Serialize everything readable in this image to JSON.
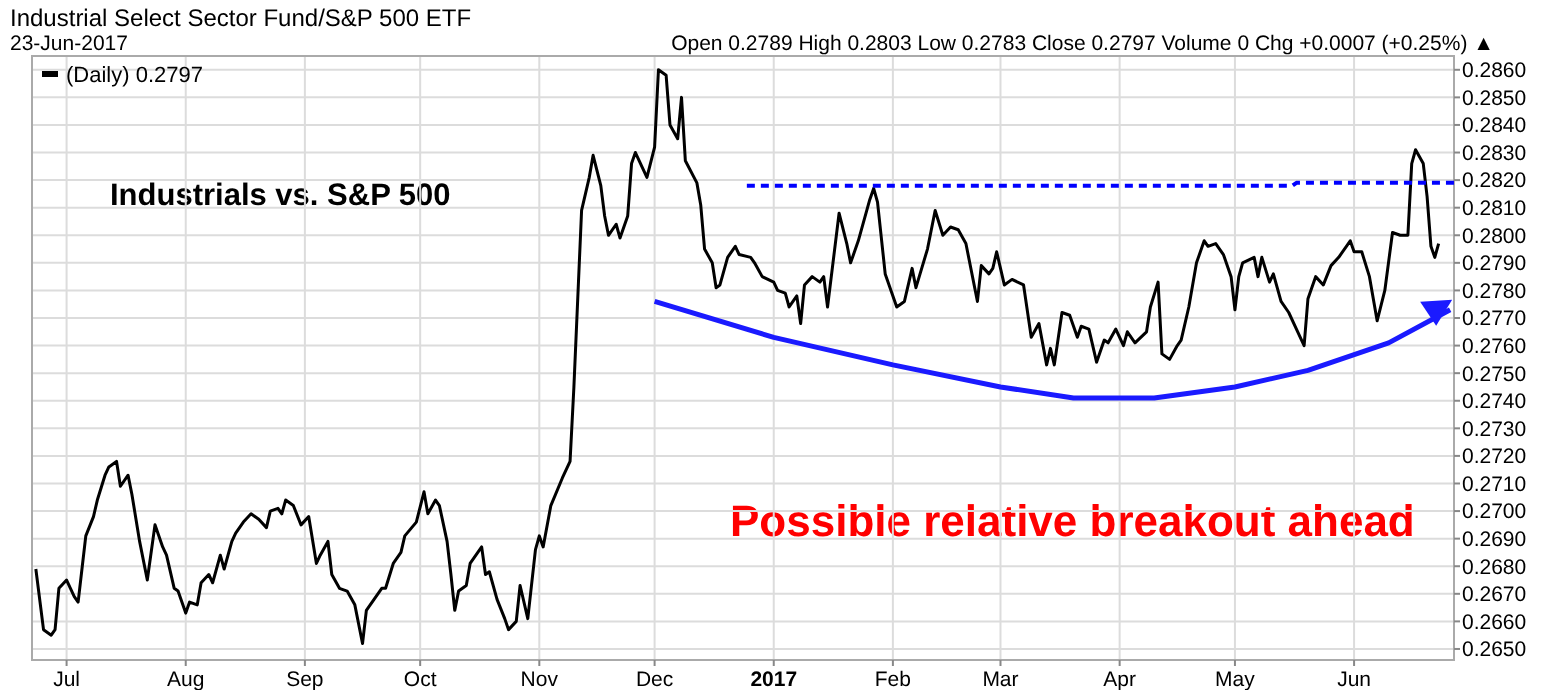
{
  "chart_data": {
    "type": "line",
    "title": "Industrial Select Sector Fund/S&P 500 ETF",
    "subtitle": "Open 0.2789  High 0.2803  Low 0.2783  Close 0.2797  Volume 0  Chg +0.0007 (+0.25%) ▲",
    "annotations": [
      "23-Jun-2017",
      "Industrials vs. S&P 500",
      "Possible relative breakout ahead"
    ],
    "legend": "top left",
    "grid": true,
    "xlim": [
      "2016-06-22",
      "2017-06-27"
    ],
    "xticks": [
      {
        "value": "2016-07-01",
        "label": "Jul"
      },
      {
        "value": "2016-08-01",
        "label": "Aug"
      },
      {
        "value": "2016-09-01",
        "label": "Sep"
      },
      {
        "value": "2016-10-01",
        "label": "Oct"
      },
      {
        "value": "2016-11-01",
        "label": "Nov"
      },
      {
        "value": "2016-12-01",
        "label": "Dec"
      },
      {
        "value": "2017-01-01",
        "label": "2017"
      },
      {
        "value": "2017-02-01",
        "label": "Feb"
      },
      {
        "value": "2017-03-01",
        "label": "Mar"
      },
      {
        "value": "2017-04-01",
        "label": "Apr"
      },
      {
        "value": "2017-05-01",
        "label": "May"
      },
      {
        "value": "2017-06-01",
        "label": "Jun"
      }
    ],
    "ylim": [
      0.2646,
      0.2865
    ],
    "yticks": [
      {
        "value": 0.265,
        "label": "0.2650"
      },
      {
        "value": 0.266,
        "label": "0.2660"
      },
      {
        "value": 0.267,
        "label": "0.2670"
      },
      {
        "value": 0.268,
        "label": "0.2680"
      },
      {
        "value": 0.269,
        "label": "0.2690"
      },
      {
        "value": 0.27,
        "label": "0.2700"
      },
      {
        "value": 0.271,
        "label": "0.2710"
      },
      {
        "value": 0.272,
        "label": "0.2720"
      },
      {
        "value": 0.273,
        "label": "0.2730"
      },
      {
        "value": 0.274,
        "label": "0.2740"
      },
      {
        "value": 0.275,
        "label": "0.2750"
      },
      {
        "value": 0.276,
        "label": "0.2760"
      },
      {
        "value": 0.277,
        "label": "0.2770"
      },
      {
        "value": 0.278,
        "label": "0.2780"
      },
      {
        "value": 0.279,
        "label": "0.2790"
      },
      {
        "value": 0.28,
        "label": "0.2800"
      },
      {
        "value": 0.281,
        "label": "0.2810"
      },
      {
        "value": 0.282,
        "label": "0.2820"
      },
      {
        "value": 0.283,
        "label": "0.2830"
      },
      {
        "value": 0.284,
        "label": "0.2840"
      },
      {
        "value": 0.285,
        "label": "0.2850"
      },
      {
        "value": 0.286,
        "label": "0.2860"
      }
    ],
    "series": [
      {
        "name": "(Daily) 0.2797",
        "color": "#000000",
        "line_style": "solid",
        "x": [
          "2016-06-23",
          "2016-06-25",
          "2016-06-27",
          "2016-06-28",
          "2016-06-29",
          "2016-07-01",
          "2016-07-03",
          "2016-07-04",
          "2016-07-05",
          "2016-07-06",
          "2016-07-08",
          "2016-07-09",
          "2016-07-11",
          "2016-07-12",
          "2016-07-14",
          "2016-07-15",
          "2016-07-17",
          "2016-07-18",
          "2016-07-20",
          "2016-07-22",
          "2016-07-24",
          "2016-07-26",
          "2016-07-27",
          "2016-07-29",
          "2016-07-30",
          "2016-08-01",
          "2016-08-02",
          "2016-08-04",
          "2016-08-05",
          "2016-08-07",
          "2016-08-08",
          "2016-08-10",
          "2016-08-11",
          "2016-08-13",
          "2016-08-14",
          "2016-08-16",
          "2016-08-18",
          "2016-08-20",
          "2016-08-22",
          "2016-08-23",
          "2016-08-25",
          "2016-08-26",
          "2016-08-27",
          "2016-08-29",
          "2016-08-31",
          "2016-09-02",
          "2016-09-04",
          "2016-09-05",
          "2016-09-07",
          "2016-09-08",
          "2016-09-10",
          "2016-09-12",
          "2016-09-14",
          "2016-09-16",
          "2016-09-17",
          "2016-09-19",
          "2016-09-21",
          "2016-09-22",
          "2016-09-24",
          "2016-09-26",
          "2016-09-27",
          "2016-09-30",
          "2016-10-02",
          "2016-10-03",
          "2016-10-05",
          "2016-10-06",
          "2016-10-08",
          "2016-10-09",
          "2016-10-10",
          "2016-10-11",
          "2016-10-13",
          "2016-10-14",
          "2016-10-17",
          "2016-10-18",
          "2016-10-19",
          "2016-10-21",
          "2016-10-23",
          "2016-10-24",
          "2016-10-26",
          "2016-10-27",
          "2016-10-29",
          "2016-10-31",
          "2016-11-01",
          "2016-11-02",
          "2016-11-04",
          "2016-11-07",
          "2016-11-09",
          "2016-11-10",
          "2016-11-12",
          "2016-11-14",
          "2016-11-15",
          "2016-11-17",
          "2016-11-18",
          "2016-11-19",
          "2016-11-21",
          "2016-11-22",
          "2016-11-24",
          "2016-11-25",
          "2016-11-26",
          "2016-11-28",
          "2016-11-29",
          "2016-12-01",
          "2016-12-02",
          "2016-12-04",
          "2016-12-05",
          "2016-12-07",
          "2016-12-08",
          "2016-12-09",
          "2016-12-12",
          "2016-12-13",
          "2016-12-14",
          "2016-12-16",
          "2016-12-17",
          "2016-12-18",
          "2016-12-20",
          "2016-12-22",
          "2016-12-23",
          "2016-12-26",
          "2016-12-27",
          "2016-12-29",
          "2017-01-01",
          "2017-01-02",
          "2017-01-04",
          "2017-01-05",
          "2017-01-07",
          "2017-01-08",
          "2017-01-09",
          "2017-01-11",
          "2017-01-13",
          "2017-01-14",
          "2017-01-15",
          "2017-01-18",
          "2017-01-20",
          "2017-01-21",
          "2017-01-23",
          "2017-01-26",
          "2017-01-27",
          "2017-01-28",
          "2017-01-30",
          "2017-02-02",
          "2017-02-04",
          "2017-02-06",
          "2017-02-07",
          "2017-02-10",
          "2017-02-12",
          "2017-02-14",
          "2017-02-16",
          "2017-02-18",
          "2017-02-20",
          "2017-02-23",
          "2017-02-24",
          "2017-02-26",
          "2017-02-27",
          "2017-02-28",
          "2017-03-02",
          "2017-03-04",
          "2017-03-07",
          "2017-03-09",
          "2017-03-11",
          "2017-03-13",
          "2017-03-14",
          "2017-03-15",
          "2017-03-17",
          "2017-03-19",
          "2017-03-21",
          "2017-03-22",
          "2017-03-24",
          "2017-03-26",
          "2017-03-28",
          "2017-03-29",
          "2017-03-31",
          "2017-04-02",
          "2017-04-03",
          "2017-04-05",
          "2017-04-08",
          "2017-04-09",
          "2017-04-11",
          "2017-04-12",
          "2017-04-14",
          "2017-04-16",
          "2017-04-17",
          "2017-04-19",
          "2017-04-21",
          "2017-04-23",
          "2017-04-24",
          "2017-04-26",
          "2017-04-28",
          "2017-04-30",
          "2017-05-01",
          "2017-05-02",
          "2017-05-03",
          "2017-05-06",
          "2017-05-07",
          "2017-05-08",
          "2017-05-10",
          "2017-05-11",
          "2017-05-13",
          "2017-05-15",
          "2017-05-17",
          "2017-05-19",
          "2017-05-20",
          "2017-05-22",
          "2017-05-24",
          "2017-05-26",
          "2017-05-28",
          "2017-05-30",
          "2017-05-31",
          "2017-06-01",
          "2017-06-03",
          "2017-06-05",
          "2017-06-07",
          "2017-06-09",
          "2017-06-11",
          "2017-06-13",
          "2017-06-15",
          "2017-06-16",
          "2017-06-17",
          "2017-06-19",
          "2017-06-20",
          "2017-06-21",
          "2017-06-22",
          "2017-06-23"
        ],
        "values": [
          0.2679,
          0.2657,
          0.2655,
          0.2657,
          0.2672,
          0.2675,
          0.2669,
          0.2667,
          0.2679,
          0.2691,
          0.2698,
          0.2704,
          0.2713,
          0.2716,
          0.2718,
          0.2709,
          0.2713,
          0.2706,
          0.2689,
          0.2675,
          0.2695,
          0.2687,
          0.2684,
          0.2672,
          0.2671,
          0.2663,
          0.2667,
          0.2666,
          0.2674,
          0.2677,
          0.2674,
          0.2684,
          0.2679,
          0.2689,
          0.2692,
          0.2696,
          0.2699,
          0.2697,
          0.2694,
          0.27,
          0.2701,
          0.2699,
          0.2704,
          0.2702,
          0.2695,
          0.2698,
          0.2681,
          0.2684,
          0.2689,
          0.2677,
          0.2672,
          0.2671,
          0.2666,
          0.2652,
          0.2664,
          0.2668,
          0.2672,
          0.2672,
          0.2681,
          0.2685,
          0.2691,
          0.2696,
          0.2707,
          0.2699,
          0.2704,
          0.2702,
          0.2689,
          0.2677,
          0.2664,
          0.2671,
          0.2673,
          0.2681,
          0.2687,
          0.2677,
          0.2678,
          0.2668,
          0.2661,
          0.2657,
          0.266,
          0.2673,
          0.2661,
          0.2686,
          0.2691,
          0.2687,
          0.2702,
          0.2712,
          0.2718,
          0.2745,
          0.2809,
          0.2821,
          0.2829,
          0.2818,
          0.2807,
          0.28,
          0.2804,
          0.2799,
          0.2807,
          0.2826,
          0.283,
          0.2824,
          0.2821,
          0.2832,
          0.286,
          0.2858,
          0.284,
          0.2835,
          0.285,
          0.2827,
          0.2819,
          0.2811,
          0.2795,
          0.279,
          0.2781,
          0.2782,
          0.2792,
          0.2796,
          0.2793,
          0.2792,
          0.279,
          0.2785,
          0.2783,
          0.278,
          0.2779,
          0.2774,
          0.2778,
          0.2768,
          0.2782,
          0.2785,
          0.2783,
          0.2785,
          0.2774,
          0.2808,
          0.2797,
          0.279,
          0.2798,
          0.2813,
          0.2817,
          0.2812,
          0.2786,
          0.2774,
          0.2776,
          0.2788,
          0.2781,
          0.2795,
          0.2809,
          0.28,
          0.2803,
          0.2802,
          0.2797,
          0.2776,
          0.2789,
          0.2786,
          0.2788,
          0.2794,
          0.2782,
          0.2784,
          0.2782,
          0.2763,
          0.2768,
          0.2753,
          0.2759,
          0.2753,
          0.2772,
          0.2771,
          0.2763,
          0.2767,
          0.2766,
          0.2754,
          0.2762,
          0.2761,
          0.2766,
          0.276,
          0.2765,
          0.2761,
          0.2765,
          0.2774,
          0.2783,
          0.2757,
          0.2755,
          0.276,
          0.2762,
          0.2774,
          0.279,
          0.2798,
          0.2796,
          0.2797,
          0.2793,
          0.2785,
          0.2773,
          0.2785,
          0.279,
          0.2792,
          0.2785,
          0.2792,
          0.2783,
          0.2786,
          0.2776,
          0.2772,
          0.2766,
          0.276,
          0.2777,
          0.2785,
          0.2782,
          0.2789,
          0.2792,
          0.2796,
          0.2798,
          0.2794,
          0.2794,
          0.2785,
          0.2769,
          0.278,
          0.2801,
          0.28,
          0.28,
          0.2826,
          0.2831,
          0.2826,
          0.2814,
          0.2796,
          0.2792,
          0.2797
        ]
      },
      {
        "color": "#0000ff",
        "line_style": "dashed",
        "x": [
          "2016-12-25",
          "2017-05-16",
          "2017-05-17",
          "2017-06-27"
        ],
        "values": [
          0.2818,
          0.2818,
          0.2819,
          0.2819
        ]
      },
      {
        "color": "#1a1aff",
        "line_style": "solid",
        "x": [
          "2016-12-01",
          "2017-01-01",
          "2017-02-01",
          "2017-03-01",
          "2017-03-20",
          "2017-04-10",
          "2017-05-01",
          "2017-05-20",
          "2017-06-10",
          "2017-06-26"
        ],
        "values": [
          0.2776,
          0.2763,
          0.2753,
          0.2745,
          0.2741,
          0.2741,
          0.2745,
          0.2751,
          0.2761,
          0.2773
        ]
      }
    ]
  }
}
